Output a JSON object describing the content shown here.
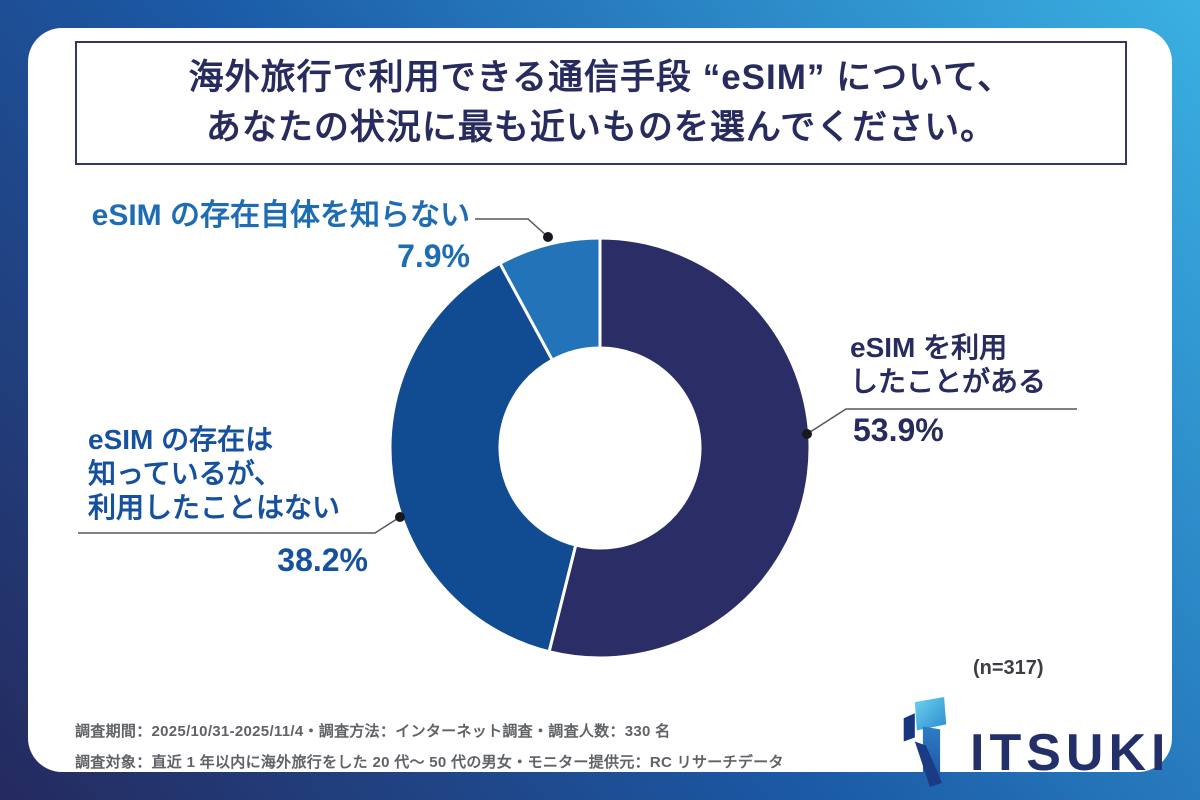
{
  "title": {
    "lines": [
      "海外旅行で利用できる通信手段 “eSIM” について、",
      "あなたの状況に最も近いものを選んでください。"
    ]
  },
  "chart_data": {
    "type": "pie",
    "variant": "donut",
    "title": "海外旅行で利用できる通信手段 “eSIM” について、あなたの状況に最も近いものを選んでください。",
    "sample_note": "(n=317)",
    "start_angle": "12-o'clock",
    "direction": "clockwise",
    "legend_position": "callouts",
    "segments": [
      {
        "label": "eSIM を利用したことがある",
        "value": 53.9,
        "color": "#2b2e66",
        "text_color": "#272b5e"
      },
      {
        "label": "eSIM の存在は知っているが、利用したことはない",
        "value": 38.2,
        "color": "#114b92",
        "text_color": "#16519f"
      },
      {
        "label": "eSIM の存在自体を知らない",
        "value": 7.9,
        "color": "#2273b7",
        "text_color": "#1e6db3"
      }
    ]
  },
  "callouts": {
    "used": {
      "lines": [
        "eSIM を利用",
        "したことがある"
      ],
      "pct": "53.9%",
      "color": "#272b5e"
    },
    "known": {
      "lines": [
        "eSIM の存在は",
        "知っているが、",
        "利用したことはない"
      ],
      "pct": "38.2%",
      "color": "#16519f"
    },
    "unknown": {
      "lines": [
        "eSIM の存在自体を知らない"
      ],
      "pct": "7.9%",
      "color": "#1e6db3"
    }
  },
  "sample_note": "(n=317)",
  "footer": {
    "lines": [
      "調査期間：2025/10/31-2025/11/4・調査方法：インターネット調査・調査人数：330 名",
      "調査対象：直近 1 年以内に海外旅行をした 20 代～ 50 代の男女・モニター提供元：RC リサーチデータ"
    ]
  },
  "logo": {
    "text": "ITSUKI"
  },
  "colors": {
    "background_gradient": [
      "#252a5e",
      "#1b5aa6",
      "#3ab0e2"
    ],
    "card": "#ffffff",
    "title_text": "#272b5e",
    "title_border": "#32366a",
    "footer_text": "#5f6266",
    "leader_line": "#55565e",
    "leader_dot": "#17181d"
  }
}
